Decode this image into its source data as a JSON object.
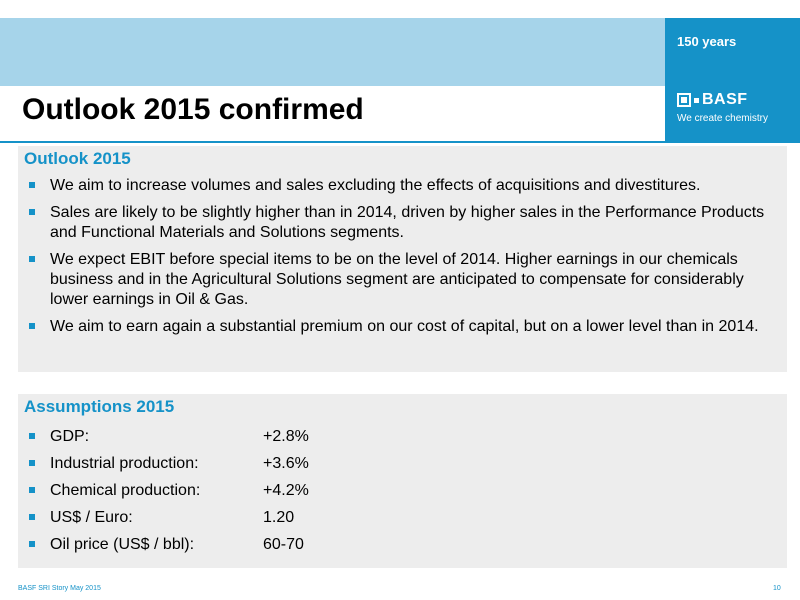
{
  "header": {
    "title": "Outlook 2015 confirmed",
    "anniversary": "150 years",
    "logo_text": "BASF",
    "tagline": "We create chemistry",
    "brand_color": "#1592c8",
    "band_color": "#a6d4ea"
  },
  "outlook": {
    "heading": "Outlook 2015",
    "items": [
      "We aim to increase volumes and sales excluding the effects of acquisitions and divestitures.",
      "Sales are likely to be slightly higher than in 2014, driven by higher sales in the Performance Products and Functional Materials and Solutions segments.",
      "We expect EBIT before special items to be on the level of 2014. Higher earnings in our chemicals business and in the Agricultural Solutions segment are anticipated to compensate for considerably lower earnings in Oil & Gas.",
      "We aim to earn again a substantial premium on our cost of capital, but on a lower level than in 2014."
    ]
  },
  "assumptions": {
    "heading": "Assumptions 2015",
    "rows": [
      {
        "label": "GDP:",
        "value": "+2.8%"
      },
      {
        "label": "Industrial production:",
        "value": "+3.6%"
      },
      {
        "label": "Chemical production:",
        "value": "+4.2%"
      },
      {
        "label": "US$ / Euro:",
        "value": "1.20"
      },
      {
        "label": "Oil price (US$ / bbl):",
        "value": "60-70"
      }
    ]
  },
  "footer": {
    "text": "BASF SRI Story May 2015",
    "page_number": "10"
  }
}
